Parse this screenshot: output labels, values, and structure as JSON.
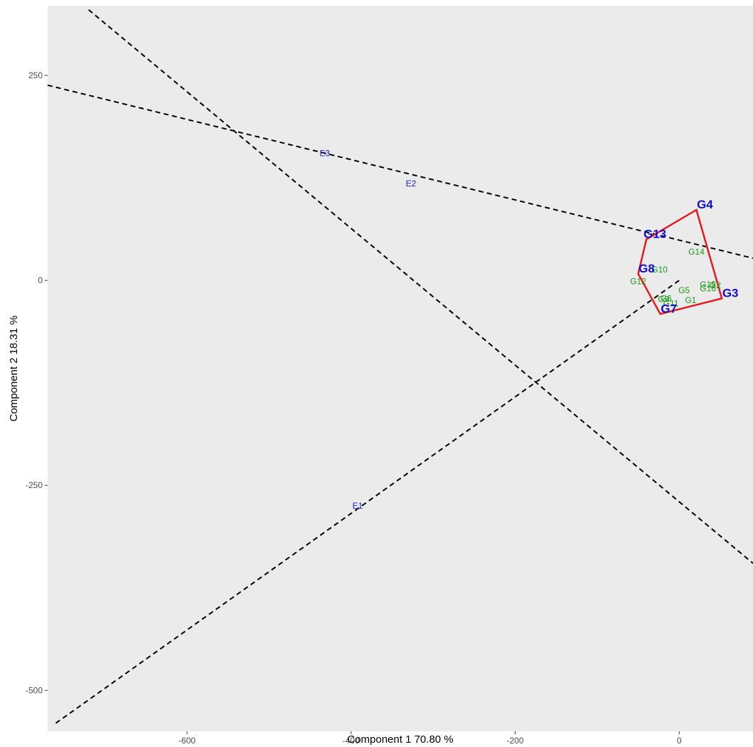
{
  "chart_data": {
    "type": "scatter",
    "subtype": "gge-biplot-which-won-where",
    "title": "",
    "xlabel": "Component 1 70.80 %",
    "ylabel": "Component 2 18.31 %",
    "xlim": [
      -770,
      90
    ],
    "ylim": [
      -550,
      335
    ],
    "x_ticks": [
      {
        "value": -600,
        "label": "-600"
      },
      {
        "value": -400,
        "label": "-400"
      },
      {
        "value": -200,
        "label": "-200"
      },
      {
        "value": 0,
        "label": "0"
      }
    ],
    "y_ticks": [
      {
        "value": 250,
        "label": "250"
      },
      {
        "value": 0,
        "label": "0"
      },
      {
        "value": -250,
        "label": "-250"
      },
      {
        "value": -500,
        "label": "-500"
      }
    ],
    "grid": false,
    "panel_background": "#ebebeb",
    "hull_color": "#e41a1c",
    "environment_color": "#1a1acd",
    "genotype_color": "#1a9a1a",
    "vertex_color": "#0f0fcc",
    "environments": [
      {
        "name": "E1",
        "x": -392,
        "y": -275
      },
      {
        "name": "E2",
        "x": -327,
        "y": 118
      },
      {
        "name": "E3",
        "x": -432,
        "y": 155
      }
    ],
    "genotypes": [
      {
        "name": "G1",
        "x": 14,
        "y": -24
      },
      {
        "name": "G2",
        "x": 44,
        "y": -6
      },
      {
        "name": "G5",
        "x": 6,
        "y": -12
      },
      {
        "name": "G6",
        "x": -16,
        "y": -22
      },
      {
        "name": "G9",
        "x": -19,
        "y": -23
      },
      {
        "name": "G10",
        "x": -24,
        "y": 13
      },
      {
        "name": "G11",
        "x": -10,
        "y": -28
      },
      {
        "name": "G12",
        "x": -50,
        "y": -1
      },
      {
        "name": "G14",
        "x": 21,
        "y": 35
      },
      {
        "name": "G15",
        "x": 35,
        "y": -5
      },
      {
        "name": "G16",
        "x": 35,
        "y": -10
      }
    ],
    "vertex_genotypes": [
      {
        "name": "G3",
        "x": 52,
        "y": -22
      },
      {
        "name": "G4",
        "x": 21,
        "y": 86
      },
      {
        "name": "G7",
        "x": -23,
        "y": -41
      },
      {
        "name": "G8",
        "x": -50,
        "y": 8
      },
      {
        "name": "G13",
        "x": -40,
        "y": 50
      }
    ],
    "hull_order": [
      "G4",
      "G3",
      "G7",
      "G8",
      "G13"
    ],
    "sector_lines": [
      {
        "x1": -770,
        "y1": 238,
        "x2": 90,
        "y2": 27
      },
      {
        "x1": -720,
        "y1": 330,
        "x2": 90,
        "y2": -345
      },
      {
        "x1": -760,
        "y1": -540,
        "x2": 0,
        "y2": 0
      }
    ]
  }
}
